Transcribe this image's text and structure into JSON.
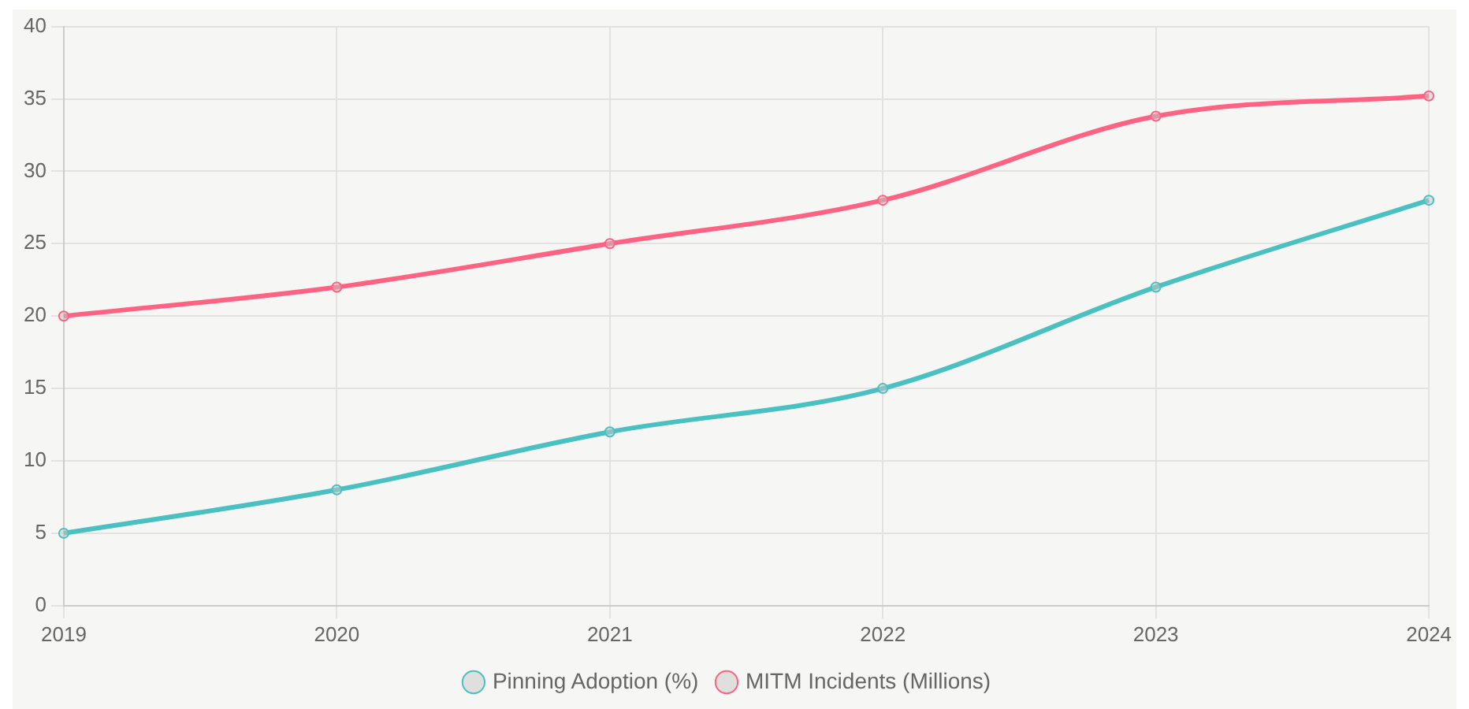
{
  "chart_data": {
    "type": "line",
    "categories": [
      "2019",
      "2020",
      "2021",
      "2022",
      "2023",
      "2024"
    ],
    "series": [
      {
        "name": "Pinning Adoption (%)",
        "color": "#4bc0c0",
        "values": [
          5,
          8,
          12,
          15,
          22,
          28
        ]
      },
      {
        "name": "MITM Incidents (Millions)",
        "color": "#ff6384",
        "values": [
          20,
          22,
          25,
          28,
          33.8,
          35.2
        ]
      }
    ],
    "ylim": [
      0,
      40
    ],
    "yticks": [
      0,
      5,
      10,
      15,
      20,
      25,
      30,
      35,
      40
    ],
    "grid": true,
    "legend": "bottom",
    "marker": "circle",
    "line_style": "solid"
  }
}
